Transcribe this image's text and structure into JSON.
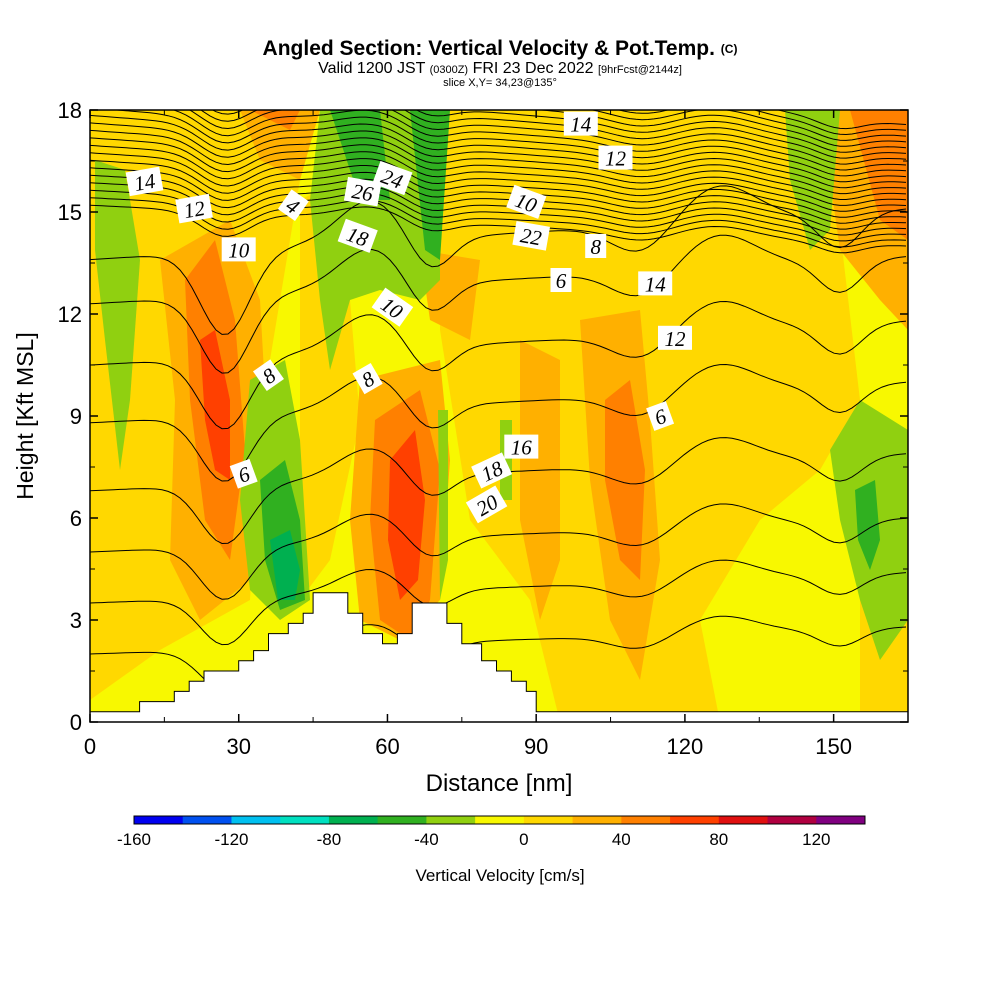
{
  "header": {
    "title_main": "Angled Section: Vertical Velocity & Pot.Temp.",
    "title_units": "(C)",
    "valid_a": "Valid 1200 JST",
    "valid_b": "(0300Z)",
    "valid_c": "FRI 23 Dec 2022",
    "valid_d": "[9hrFcst@2144z]",
    "slice": "slice X,Y= 34,23@135°"
  },
  "chart_data": {
    "type": "heatmap",
    "xlabel": "Distance [nm]",
    "ylabel": "Height [Kft MSL]",
    "xlim": [
      0,
      165
    ],
    "ylim": [
      0,
      18
    ],
    "x_ticks": [
      "0",
      "30",
      "60",
      "90",
      "120",
      "150"
    ],
    "y_ticks": [
      "0",
      "3",
      "6",
      "9",
      "12",
      "15",
      "18"
    ],
    "colorbar": {
      "label": "Vertical Velocity [cm/s]",
      "tick_labels": [
        "-160",
        "-120",
        "-80",
        "-40",
        "0",
        "40",
        "80",
        "120"
      ],
      "colors": [
        "#0000f0",
        "#0050f0",
        "#00c0f0",
        "#00e0c0",
        "#00b050",
        "#30b020",
        "#90d010",
        "#f8f800",
        "#ffd800",
        "#ffb000",
        "#ff8000",
        "#ff4000",
        "#e01010",
        "#b00040",
        "#800080"
      ]
    },
    "theta_contour_labels": [
      "14",
      "12",
      "10",
      "8",
      "6",
      "4",
      "26",
      "24",
      "22",
      "20",
      "18",
      "16",
      "14",
      "12",
      "10",
      "8",
      "6",
      "18",
      "14",
      "12",
      "10",
      "8",
      "6"
    ],
    "terrain_profile": [
      [
        0,
        0.3
      ],
      [
        10,
        0.3
      ],
      [
        10,
        0.6
      ],
      [
        17,
        0.6
      ],
      [
        17,
        0.9
      ],
      [
        20,
        0.9
      ],
      [
        20,
        1.2
      ],
      [
        23,
        1.2
      ],
      [
        23,
        1.5
      ],
      [
        30,
        1.5
      ],
      [
        30,
        1.8
      ],
      [
        33,
        1.8
      ],
      [
        33,
        2.1
      ],
      [
        36,
        2.1
      ],
      [
        36,
        2.6
      ],
      [
        40,
        2.6
      ],
      [
        40,
        2.9
      ],
      [
        43,
        2.9
      ],
      [
        43,
        3.2
      ],
      [
        45,
        3.2
      ],
      [
        45,
        3.8
      ],
      [
        52,
        3.8
      ],
      [
        52,
        3.2
      ],
      [
        55,
        3.2
      ],
      [
        55,
        2.6
      ],
      [
        59,
        2.6
      ],
      [
        59,
        2.3
      ],
      [
        62,
        2.3
      ],
      [
        62,
        2.6
      ],
      [
        65,
        2.6
      ],
      [
        65,
        3.5
      ],
      [
        72,
        3.5
      ],
      [
        72,
        2.9
      ],
      [
        75,
        2.9
      ],
      [
        75,
        2.3
      ],
      [
        79,
        2.3
      ],
      [
        79,
        1.8
      ],
      [
        82,
        1.8
      ],
      [
        82,
        1.5
      ],
      [
        85,
        1.5
      ],
      [
        85,
        1.2
      ],
      [
        88,
        1.2
      ],
      [
        88,
        0.9
      ],
      [
        90,
        0.9
      ],
      [
        90,
        0.3
      ],
      [
        165,
        0.3
      ]
    ]
  }
}
